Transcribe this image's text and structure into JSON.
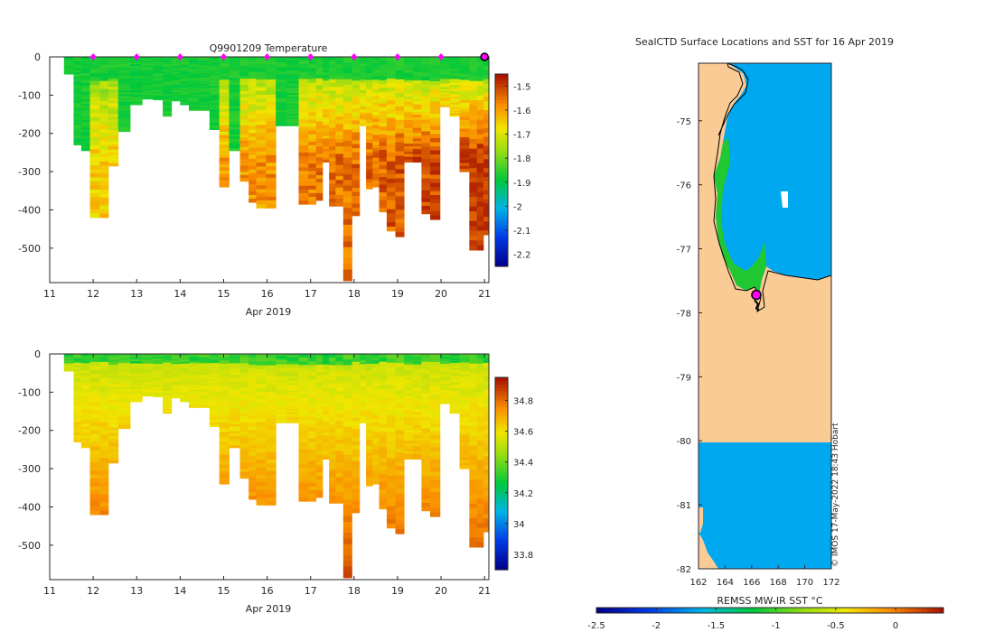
{
  "chart_data": [
    {
      "type": "heatmap",
      "title": "Q9901209  Temperature",
      "variable": "temperature",
      "xlabel": "Apr 2019",
      "xlim": [
        11,
        21.1
      ],
      "ylim": [
        -590,
        0
      ],
      "x_ticks": [
        11,
        12,
        13,
        14,
        15,
        16,
        17,
        18,
        19,
        20,
        21
      ],
      "y_ticks": [
        0,
        -100,
        -200,
        -300,
        -400,
        -500
      ],
      "colorbar": {
        "min": -2.25,
        "max": -1.45,
        "ticks": [
          -1.5,
          -1.6,
          -1.7,
          -1.8,
          -1.9,
          -2,
          -2.1,
          -2.2
        ]
      },
      "profile_markers_x": [
        12,
        13,
        14,
        15,
        16,
        17,
        18,
        19,
        20
      ],
      "last_profile_marker_x": 21,
      "profiles": [
        {
          "x": 11.45,
          "depth": 45
        },
        {
          "x": 11.65,
          "depth": 230
        },
        {
          "x": 11.8,
          "depth": 245
        },
        {
          "x": 12.05,
          "depth": 420
        },
        {
          "x": 12.25,
          "depth": 420
        },
        {
          "x": 12.45,
          "depth": 285
        },
        {
          "x": 12.7,
          "depth": 195
        },
        {
          "x": 13.0,
          "depth": 125
        },
        {
          "x": 13.25,
          "depth": 110
        },
        {
          "x": 13.5,
          "depth": 112
        },
        {
          "x": 13.7,
          "depth": 155
        },
        {
          "x": 13.9,
          "depth": 115
        },
        {
          "x": 14.1,
          "depth": 125
        },
        {
          "x": 14.3,
          "depth": 140
        },
        {
          "x": 14.55,
          "depth": 140
        },
        {
          "x": 14.8,
          "depth": 190
        },
        {
          "x": 15.0,
          "depth": 340
        },
        {
          "x": 15.25,
          "depth": 245
        },
        {
          "x": 15.5,
          "depth": 325
        },
        {
          "x": 15.65,
          "depth": 380
        },
        {
          "x": 15.85,
          "depth": 395
        },
        {
          "x": 16.1,
          "depth": 395
        },
        {
          "x": 16.3,
          "depth": 180
        },
        {
          "x": 16.6,
          "depth": 180
        },
        {
          "x": 16.85,
          "depth": 385
        },
        {
          "x": 17.05,
          "depth": 385
        },
        {
          "x": 17.2,
          "depth": 375
        },
        {
          "x": 17.35,
          "depth": 275
        },
        {
          "x": 17.5,
          "depth": 390
        },
        {
          "x": 17.65,
          "depth": 390
        },
        {
          "x": 17.85,
          "depth": 585
        },
        {
          "x": 18.05,
          "depth": 415
        },
        {
          "x": 18.2,
          "depth": 180
        },
        {
          "x": 18.35,
          "depth": 345
        },
        {
          "x": 18.5,
          "depth": 340
        },
        {
          "x": 18.65,
          "depth": 405
        },
        {
          "x": 18.85,
          "depth": 455
        },
        {
          "x": 19.05,
          "depth": 470
        },
        {
          "x": 19.25,
          "depth": 275
        },
        {
          "x": 19.45,
          "depth": 275
        },
        {
          "x": 19.65,
          "depth": 410
        },
        {
          "x": 19.85,
          "depth": 425
        },
        {
          "x": 20.1,
          "depth": 130
        },
        {
          "x": 20.3,
          "depth": 155
        },
        {
          "x": 20.55,
          "depth": 300
        },
        {
          "x": 20.75,
          "depth": 505
        },
        {
          "x": 20.9,
          "depth": 505
        },
        {
          "x": 21.05,
          "depth": 465
        }
      ]
    },
    {
      "type": "heatmap",
      "title": "",
      "variable": "salinity",
      "xlabel": "Apr 2019",
      "xlim": [
        11,
        21.1
      ],
      "ylim": [
        -590,
        0
      ],
      "x_ticks": [
        11,
        12,
        13,
        14,
        15,
        16,
        17,
        18,
        19,
        20,
        21
      ],
      "y_ticks": [
        0,
        -100,
        -200,
        -300,
        -400,
        -500
      ],
      "colorbar": {
        "min": 33.7,
        "max": 34.95,
        "ticks": [
          34.8,
          34.6,
          34.4,
          34.2,
          34,
          33.8
        ]
      }
    },
    {
      "type": "heatmap",
      "title": "SealCTD Surface Locations and SST for 16 Apr 2019",
      "xlabel": "",
      "xlim": [
        162,
        172
      ],
      "ylim": [
        -82,
        -74
      ]
    }
  ],
  "map": {
    "x_ticks": [
      162,
      164,
      166,
      168,
      170,
      172
    ],
    "y_ticks": [
      -75,
      -76,
      -77,
      -78,
      -79,
      -80,
      -81,
      -82
    ],
    "colorbar_label": "REMSS MW-IR SST °C",
    "colorbar_ticks": [
      -2.5,
      -2,
      -1.5,
      -1,
      -0.5,
      0
    ],
    "colorbar_range": [
      -2.5,
      0.4
    ],
    "credit": "© IMOS 17-May-2022 18:43 Hobart",
    "ocean_color": "#00A8F0",
    "land_color": "#FBCB96",
    "seal_lon": 166.35,
    "seal_lat": -77.72
  }
}
